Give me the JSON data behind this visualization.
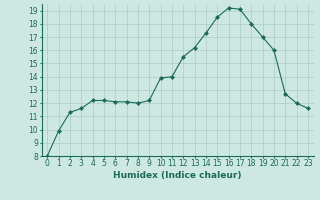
{
  "x": [
    0,
    1,
    2,
    3,
    4,
    5,
    6,
    7,
    8,
    9,
    10,
    11,
    12,
    13,
    14,
    15,
    16,
    17,
    18,
    19,
    20,
    21,
    22,
    23
  ],
  "y": [
    8,
    9.9,
    11.3,
    11.6,
    12.2,
    12.2,
    12.1,
    12.1,
    12.0,
    12.2,
    13.9,
    14.0,
    15.5,
    16.2,
    17.3,
    18.5,
    19.2,
    19.1,
    18.0,
    17.0,
    16.0,
    12.7,
    12.0,
    11.6
  ],
  "line_color": "#1a6b5a",
  "marker": "D",
  "marker_size": 2.0,
  "bg_color": "#cce8e0",
  "grid_color": "#aaccc4",
  "xlabel": "Humidex (Indice chaleur)",
  "xlim": [
    -0.5,
    23.5
  ],
  "ylim": [
    8,
    19.5
  ],
  "yticks": [
    8,
    9,
    10,
    11,
    12,
    13,
    14,
    15,
    16,
    17,
    18,
    19
  ],
  "xticks": [
    0,
    1,
    2,
    3,
    4,
    5,
    6,
    7,
    8,
    9,
    10,
    11,
    12,
    13,
    14,
    15,
    16,
    17,
    18,
    19,
    20,
    21,
    22,
    23
  ],
  "tick_label_fontsize": 5.5,
  "xlabel_fontsize": 6.5,
  "label_color": "#1a6b5a"
}
